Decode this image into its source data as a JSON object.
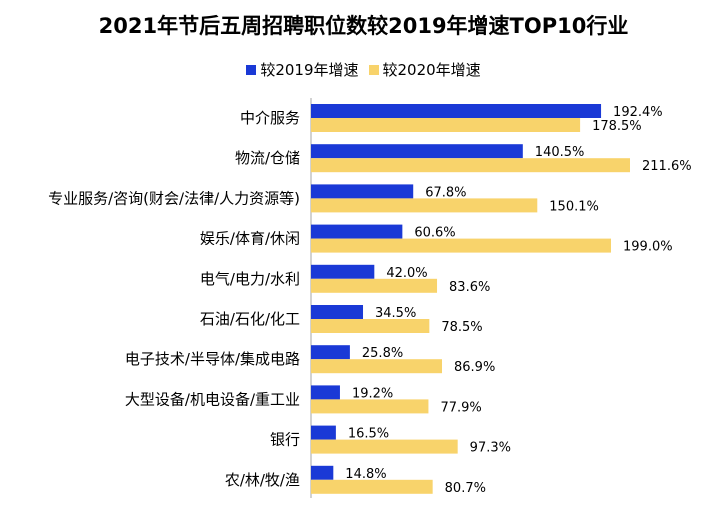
{
  "chart_data": {
    "type": "bar",
    "orientation": "horizontal",
    "title": "2021年节后五周招聘职位数较2019年增速TOP10行业",
    "categories": [
      "中介服务",
      "物流/仓储",
      "专业服务/咨询(财会/法律/人力资源等)",
      "娱乐/体育/休闲",
      "电气/电力/水利",
      "石油/石化/化工",
      "电子技术/半导体/集成电路",
      "大型设备/机电设备/重工业",
      "银行",
      "农/林/牧/渔"
    ],
    "series": [
      {
        "name": "较2019年增速",
        "color": "#1a39d6",
        "values": [
          192.4,
          140.5,
          67.8,
          60.6,
          42.0,
          34.5,
          25.8,
          19.2,
          16.5,
          14.8
        ],
        "labels": [
          "192.4%",
          "140.5%",
          "67.8%",
          "60.6%",
          "42.0%",
          "34.5%",
          "25.8%",
          "19.2%",
          "16.5%",
          "14.8%"
        ]
      },
      {
        "name": "较2020年增速",
        "color": "#f8d36b",
        "values": [
          178.5,
          211.6,
          150.1,
          199.0,
          83.6,
          78.5,
          86.9,
          77.9,
          97.3,
          80.7
        ],
        "labels": [
          "178.5%",
          "211.6%",
          "150.1%",
          "199.0%",
          "83.6%",
          "78.5%",
          "86.9%",
          "77.9%",
          "97.3%",
          "80.7%"
        ]
      }
    ],
    "xlim": [
      0,
      230
    ],
    "grid": false,
    "legend_position": "top-center"
  }
}
